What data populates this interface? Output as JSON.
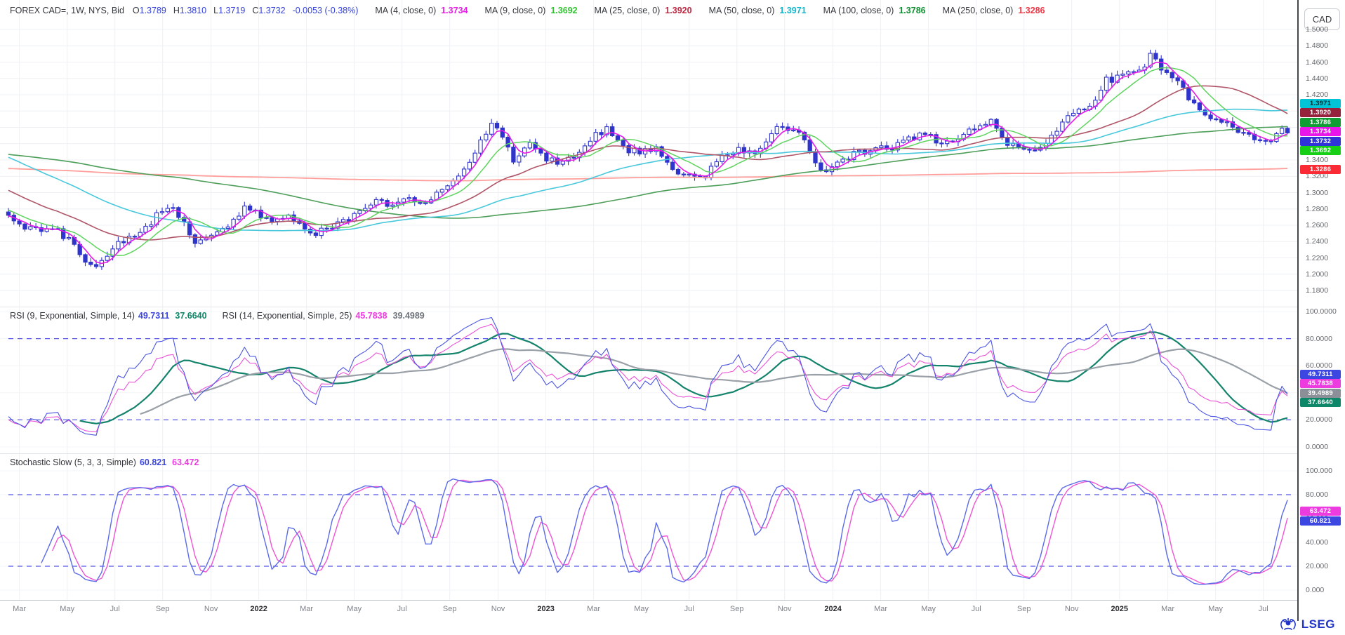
{
  "window": {
    "instrument_badge": "CAD"
  },
  "header": {
    "title": "FOREX CAD=, 1W, NYS, Bid",
    "ohlc": [
      {
        "label": "O",
        "value": "1.3789"
      },
      {
        "label": "H",
        "value": "1.3810"
      },
      {
        "label": "L",
        "value": "1.3719"
      },
      {
        "label": "C",
        "value": "1.3732"
      }
    ],
    "change": "-0.0053 (-0.38%)",
    "value_color": "#3340d9",
    "mas": [
      {
        "label": "MA (4, close, 0)",
        "value": "1.3734",
        "color": "#e61ce6"
      },
      {
        "label": "MA (9, close, 0)",
        "value": "1.3692",
        "color": "#2fc42f"
      },
      {
        "label": "MA (25, close, 0)",
        "value": "1.3920",
        "color": "#c22742"
      },
      {
        "label": "MA (50, close, 0)",
        "value": "1.3971",
        "color": "#0fb8cf"
      },
      {
        "label": "MA (100, close, 0)",
        "value": "1.3786",
        "color": "#118f33"
      },
      {
        "label": "MA (250, close, 0)",
        "value": "1.3286",
        "color": "#f23645"
      }
    ]
  },
  "rsi_legend": {
    "label1": "RSI (9, Exponential, Simple, 14)",
    "value1": "49.7311",
    "value1_ma": "37.6640",
    "label2": "RSI (14, Exponential, Simple, 25)",
    "value2": "45.7838",
    "value2_ma": "39.4989"
  },
  "stoch_legend": {
    "label": "Stochastic Slow (5, 3, 3, Simple)",
    "k_value": "60.821",
    "d_value": "63.472"
  },
  "footer": {
    "brand": "LSEG"
  },
  "chart_data": {
    "type": "candlestick",
    "instrument": "FOREX CAD=",
    "interval": "1W",
    "venue": "NYS",
    "side": "Bid",
    "current": {
      "open": 1.3789,
      "high": 1.381,
      "low": 1.3719,
      "close": 1.3732,
      "change": -0.0053,
      "change_pct": -0.38
    },
    "weeks_total": 234,
    "price_pane": {
      "y_range": {
        "min": 1.18,
        "max": 1.5,
        "grid_step": 0.02
      },
      "candle_up_style": "hollow-blue",
      "candle_down_style": "filled-blue",
      "candle_color": "#2f34cc",
      "weekly_close_anchors": [
        [
          0,
          1.268
        ],
        [
          3,
          1.2575
        ],
        [
          6,
          1.2525
        ],
        [
          9,
          1.2535
        ],
        [
          12,
          1.2365
        ],
        [
          14,
          1.2175
        ],
        [
          16,
          1.2055
        ],
        [
          18,
          1.2245
        ],
        [
          21,
          1.2425
        ],
        [
          24,
          1.2515
        ],
        [
          27,
          1.2715
        ],
        [
          30,
          1.2795
        ],
        [
          32,
          1.2615
        ],
        [
          34,
          1.2375
        ],
        [
          37,
          1.2495
        ],
        [
          40,
          1.2615
        ],
        [
          43,
          1.2825
        ],
        [
          46,
          1.2715
        ],
        [
          48,
          1.2635
        ],
        [
          51,
          1.2715
        ],
        [
          55,
          1.2495
        ],
        [
          58,
          1.2565
        ],
        [
          61,
          1.2635
        ],
        [
          64,
          1.2795
        ],
        [
          67,
          1.2895
        ],
        [
          70,
          1.2855
        ],
        [
          73,
          1.2895
        ],
        [
          77,
          1.2915
        ],
        [
          80,
          1.3055
        ],
        [
          83,
          1.3295
        ],
        [
          86,
          1.3615
        ],
        [
          88,
          1.3825
        ],
        [
          90,
          1.3675
        ],
        [
          92,
          1.3415
        ],
        [
          95,
          1.3575
        ],
        [
          98,
          1.3395
        ],
        [
          101,
          1.3355
        ],
        [
          104,
          1.3475
        ],
        [
          107,
          1.3715
        ],
        [
          109,
          1.3775
        ],
        [
          112,
          1.3535
        ],
        [
          115,
          1.3495
        ],
        [
          118,
          1.3575
        ],
        [
          121,
          1.3295
        ],
        [
          124,
          1.3195
        ],
        [
          127,
          1.3215
        ],
        [
          130,
          1.3455
        ],
        [
          133,
          1.3515
        ],
        [
          136,
          1.3495
        ],
        [
          139,
          1.3715
        ],
        [
          141,
          1.3835
        ],
        [
          144,
          1.3715
        ],
        [
          147,
          1.3375
        ],
        [
          149,
          1.3215
        ],
        [
          152,
          1.3395
        ],
        [
          155,
          1.3495
        ],
        [
          158,
          1.3535
        ],
        [
          161,
          1.3555
        ],
        [
          164,
          1.3675
        ],
        [
          167,
          1.3715
        ],
        [
          170,
          1.3615
        ],
        [
          173,
          1.3695
        ],
        [
          176,
          1.3775
        ],
        [
          179,
          1.3855
        ],
        [
          182,
          1.3615
        ],
        [
          185,
          1.3495
        ],
        [
          188,
          1.3515
        ],
        [
          191,
          1.3775
        ],
        [
          194,
          1.3975
        ],
        [
          197,
          1.4075
        ],
        [
          200,
          1.4375
        ],
        [
          203,
          1.4435
        ],
        [
          206,
          1.4475
        ],
        [
          208,
          1.4675
        ],
        [
          210,
          1.4545
        ],
        [
          213,
          1.4375
        ],
        [
          216,
          1.4075
        ],
        [
          218,
          1.3915
        ],
        [
          221,
          1.3855
        ],
        [
          224,
          1.3775
        ],
        [
          227,
          1.3655
        ],
        [
          230,
          1.3635
        ],
        [
          231,
          1.3715
        ],
        [
          232,
          1.3789
        ],
        [
          233,
          1.3732
        ]
      ],
      "prehistory_close_anchors": [
        [
          -250,
          1.316
        ],
        [
          -200,
          1.302
        ],
        [
          -150,
          1.328
        ],
        [
          -100,
          1.332
        ],
        [
          -60,
          1.352
        ],
        [
          -48,
          1.415
        ],
        [
          -30,
          1.365
        ],
        [
          -12,
          1.3
        ],
        [
          -1,
          1.27
        ]
      ],
      "moving_averages": [
        {
          "period": 4,
          "current": 1.3734,
          "color": "#e61ce6",
          "width": 1.6
        },
        {
          "period": 9,
          "current": 1.3692,
          "color": "#5fd45f",
          "width": 1.5
        },
        {
          "period": 25,
          "current": 1.392,
          "color": "#b05568",
          "width": 1.6
        },
        {
          "period": 50,
          "current": 1.3971,
          "color": "#49c8dc",
          "width": 1.6
        },
        {
          "period": 100,
          "current": 1.3786,
          "color": "#4d9e59",
          "width": 1.6
        },
        {
          "period": 250,
          "current": 1.3286,
          "color": "#ff9e9a",
          "width": 1.8
        }
      ],
      "y_ticks": [
        {
          "label": "1.5000",
          "v": 1.5
        },
        {
          "label": "1.4800",
          "v": 1.48
        },
        {
          "label": "1.4600",
          "v": 1.46
        },
        {
          "label": "1.4400",
          "v": 1.44
        },
        {
          "label": "1.4200",
          "v": 1.42
        },
        {
          "label": "1.3400",
          "v": 1.34
        },
        {
          "label": "1.3200",
          "v": 1.32
        },
        {
          "label": "1.3000",
          "v": 1.3
        },
        {
          "label": "1.2800",
          "v": 1.28
        },
        {
          "label": "1.2600",
          "v": 1.26
        },
        {
          "label": "1.2400",
          "v": 1.24
        },
        {
          "label": "1.2200",
          "v": 1.22
        },
        {
          "label": "1.2000",
          "v": 1.2
        },
        {
          "label": "1.1800",
          "v": 1.18
        }
      ],
      "badges": [
        {
          "value": "1.3971",
          "num": 1.3971,
          "bg": "#00c3d6",
          "fg": "#002b30"
        },
        {
          "value": "1.3920",
          "num": 1.392,
          "bg": "#96213c",
          "fg": "#ffffff"
        },
        {
          "value": "1.3786",
          "num": 1.3786,
          "bg": "#0f9d34",
          "fg": "#ffffff"
        },
        {
          "value": "1.3734",
          "num": 1.3734,
          "bg": "#e816e8",
          "fg": "#ffffff"
        },
        {
          "value": "1.3732",
          "num": 1.3732,
          "bg": "#2e34d8",
          "fg": "#ffffff"
        },
        {
          "value": "1.3692",
          "num": 1.3692,
          "bg": "#17cf17",
          "fg": "#ffffff"
        },
        {
          "value": "1.3286",
          "num": 1.3286,
          "bg": "#fb2b35",
          "fg": "#ffffff"
        }
      ]
    },
    "rsi_pane": {
      "indicator": "RSI",
      "series": [
        {
          "name": "RSI(9) exponential",
          "period": 9,
          "current": 49.7311,
          "color": "#4b55e1",
          "width": 1.1
        },
        {
          "name": "SMA(14) of RSI(9)",
          "period": 14,
          "current": 37.664,
          "color": "#14836b",
          "width": 2.2
        },
        {
          "name": "RSI(14) exponential",
          "period": 14,
          "current": 45.7838,
          "color": "#ea52d7",
          "width": 1.1
        },
        {
          "name": "SMA(25) of RSI(14)",
          "period": 25,
          "current": 39.4989,
          "color": "#9aa0a8",
          "width": 2.2
        }
      ],
      "levels": [
        80,
        20
      ],
      "level_color": "#3d3de0",
      "y_ticks": [
        {
          "label": "100.0000",
          "v": 100
        },
        {
          "label": "80.0000",
          "v": 80
        },
        {
          "label": "60.0000",
          "v": 60
        },
        {
          "label": "40.0000",
          "v": 40
        },
        {
          "label": "20.0000",
          "v": 20
        },
        {
          "label": "0.0000",
          "v": 0
        }
      ],
      "badges": [
        {
          "value": "49.7311",
          "num": 49.7311,
          "bg": "#3c46e0",
          "fg": "#ffffff"
        },
        {
          "value": "45.7838",
          "num": 45.7838,
          "bg": "#ec3ce0",
          "fg": "#ffffff"
        },
        {
          "value": "39.4989",
          "num": 39.4989,
          "bg": "#8a8f98",
          "fg": "#ffffff"
        },
        {
          "value": "37.6640",
          "num": 37.664,
          "bg": "#0e8668",
          "fg": "#ffffff"
        }
      ]
    },
    "stoch_pane": {
      "indicator": "Stochastic Slow",
      "params": [
        5,
        3,
        3
      ],
      "series": [
        {
          "name": "%K slow",
          "current": 60.821,
          "color": "#5a6ae8",
          "width": 1.4
        },
        {
          "name": "%D",
          "current": 63.472,
          "color": "#ee55d5",
          "width": 1.4
        }
      ],
      "levels": [
        80,
        20
      ],
      "level_color": "#3d3de0",
      "y_ticks": [
        {
          "label": "100.000",
          "v": 100
        },
        {
          "label": "80.000",
          "v": 80
        },
        {
          "label": "60.000",
          "v": 60
        },
        {
          "label": "40.000",
          "v": 40
        },
        {
          "label": "20.000",
          "v": 20
        },
        {
          "label": "0.000",
          "v": 0
        }
      ],
      "badges": [
        {
          "value": "63.472",
          "num": 63.472,
          "bg": "#ec3ce0",
          "fg": "#ffffff"
        },
        {
          "value": "60.821",
          "num": 60.821,
          "bg": "#3c46e0",
          "fg": "#ffffff"
        }
      ]
    },
    "x_axis": {
      "labels": [
        {
          "text": "Mar",
          "week": 2.0
        },
        {
          "text": "May",
          "week": 10.7
        },
        {
          "text": "Jul",
          "week": 19.4
        },
        {
          "text": "Sep",
          "week": 28.1
        },
        {
          "text": "Nov",
          "week": 36.9
        },
        {
          "text": "2022",
          "week": 45.6,
          "year": true
        },
        {
          "text": "Mar",
          "week": 54.3
        },
        {
          "text": "May",
          "week": 63.0
        },
        {
          "text": "Jul",
          "week": 71.7
        },
        {
          "text": "Sep",
          "week": 80.4
        },
        {
          "text": "Nov",
          "week": 89.2
        },
        {
          "text": "2023",
          "week": 97.9,
          "year": true
        },
        {
          "text": "Mar",
          "week": 106.6
        },
        {
          "text": "May",
          "week": 115.3
        },
        {
          "text": "Jul",
          "week": 124.0
        },
        {
          "text": "Sep",
          "week": 132.7
        },
        {
          "text": "Nov",
          "week": 141.4
        },
        {
          "text": "2024",
          "week": 150.2,
          "year": true
        },
        {
          "text": "Mar",
          "week": 158.9
        },
        {
          "text": "May",
          "week": 167.6
        },
        {
          "text": "Jul",
          "week": 176.3
        },
        {
          "text": "Sep",
          "week": 185.0
        },
        {
          "text": "Nov",
          "week": 193.7
        },
        {
          "text": "2025",
          "week": 202.4,
          "year": true
        },
        {
          "text": "Mar",
          "week": 211.2
        },
        {
          "text": "May",
          "week": 219.9
        },
        {
          "text": "Jul",
          "week": 228.6
        }
      ]
    }
  }
}
